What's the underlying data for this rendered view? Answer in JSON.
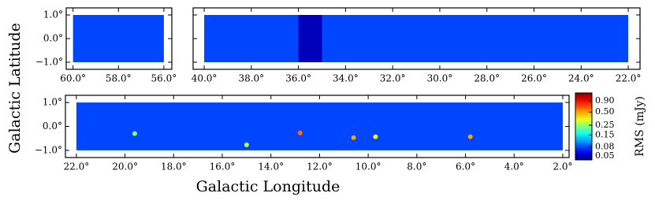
{
  "xlabel": "Galactic Longitude",
  "ylabel": "Galactic Latitude",
  "chart_data": [
    {
      "type": "image",
      "colormap": "jet",
      "xlim": [
        60.3,
        55.65
      ],
      "ylim": [
        -1.3,
        1.3
      ],
      "extent": [
        60.0,
        56.0,
        -1.0,
        1.0
      ],
      "background": 0.08,
      "xticks": [
        {
          "value": 60,
          "label": "60.0°"
        },
        {
          "value": 58,
          "label": "58.0°"
        },
        {
          "value": 56,
          "label": "56.0°"
        }
      ],
      "yticks": [
        {
          "value": 1,
          "label": "1.0°"
        },
        {
          "value": 0,
          "label": "0.0°"
        },
        {
          "value": -1,
          "label": "−1.0°"
        }
      ]
    },
    {
      "type": "image",
      "colormap": "jet",
      "xlim": [
        40.47,
        21.5
      ],
      "ylim": [
        -1.3,
        1.3
      ],
      "extent": [
        40.0,
        22.0,
        -1.0,
        1.0
      ],
      "background": 0.08,
      "regions": [
        {
          "x": [
            36.0,
            35.0
          ],
          "value": 0.05
        }
      ],
      "xticks": [
        {
          "value": 40,
          "label": "40.0°"
        },
        {
          "value": 38,
          "label": "38.0°"
        },
        {
          "value": 36,
          "label": "36.0°"
        },
        {
          "value": 34,
          "label": "34.0°"
        },
        {
          "value": 32,
          "label": "32.0°"
        },
        {
          "value": 30,
          "label": "30.0°"
        },
        {
          "value": 28,
          "label": "28.0°"
        },
        {
          "value": 26,
          "label": "26.0°"
        },
        {
          "value": 24,
          "label": "24.0°"
        },
        {
          "value": 22,
          "label": "22.0°"
        }
      ],
      "yticks": [
        -1,
        0,
        1
      ]
    },
    {
      "type": "image",
      "colormap": "jet",
      "xlim": [
        22.45,
        1.74
      ],
      "ylim": [
        -1.3,
        1.3
      ],
      "extent": [
        22.0,
        2.0,
        -1.0,
        1.0
      ],
      "background": 0.08,
      "sources": {
        "x": [
          12.8,
          10.6,
          9.7,
          5.8,
          15.0,
          19.6
        ],
        "y": [
          -0.27,
          -0.47,
          -0.43,
          -0.43,
          -0.77,
          -0.3
        ],
        "rms": [
          0.6,
          0.5,
          0.35,
          0.5,
          0.3,
          0.25
        ]
      },
      "xticks": [
        {
          "value": 22,
          "label": "22.0°"
        },
        {
          "value": 20,
          "label": "20.0°"
        },
        {
          "value": 18,
          "label": "18.0°"
        },
        {
          "value": 16,
          "label": "16.0°"
        },
        {
          "value": 14,
          "label": "14.0°"
        },
        {
          "value": 12,
          "label": "12.0°"
        },
        {
          "value": 10,
          "label": "10.0°"
        },
        {
          "value": 8,
          "label": "8.0°"
        },
        {
          "value": 6,
          "label": "6.0°"
        },
        {
          "value": 4,
          "label": "4.0°"
        },
        {
          "value": 2,
          "label": "2.0°"
        }
      ],
      "yticks": [
        {
          "value": 1,
          "label": "1.0°"
        },
        {
          "value": 0,
          "label": "0.0°"
        },
        {
          "value": -1,
          "label": "−1.0°"
        }
      ]
    },
    {
      "type": "colorbar",
      "colormap": "jet",
      "log_scale": true,
      "label": "RMS (mJy)",
      "lim": [
        0.0407,
        1.36
      ],
      "ticks": [
        {
          "value": 0.9,
          "label": "0.90"
        },
        {
          "value": 0.5,
          "label": "0.50"
        },
        {
          "value": 0.25,
          "label": "0.25"
        },
        {
          "value": 0.15,
          "label": "0.15"
        },
        {
          "value": 0.08,
          "label": "0.08"
        },
        {
          "value": 0.05,
          "label": "0.05"
        }
      ]
    }
  ]
}
